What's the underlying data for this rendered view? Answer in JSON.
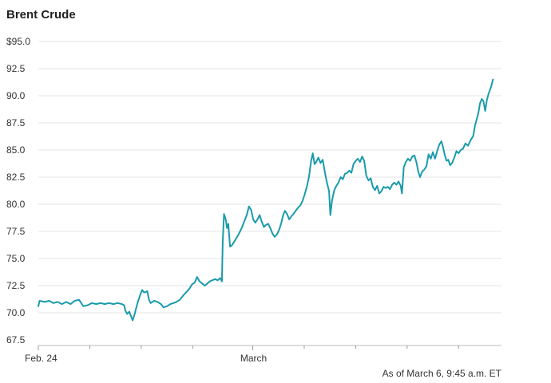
{
  "header": {
    "title": "Brent Crude"
  },
  "footer": {
    "note": "As of March 6, 9:45 a.m. ET"
  },
  "colors": {
    "line": "#1a9bab",
    "grid": "#e6e6e6"
  },
  "chart_data": {
    "type": "line",
    "title": "Brent Crude",
    "xlabel": "",
    "ylabel": "",
    "grid": true,
    "ylim": [
      67.5,
      95.0
    ],
    "yticks": [
      "$95.0",
      "92.5",
      "90.0",
      "87.5",
      "85.0",
      "82.5",
      "80.0",
      "77.5",
      "75.0",
      "72.5",
      "70.0",
      "67.5"
    ],
    "ytick_values": [
      95.0,
      92.5,
      90.0,
      87.5,
      85.0,
      82.5,
      80.0,
      77.5,
      75.0,
      72.5,
      70.0,
      67.5
    ],
    "xlim": [
      0,
      10.8
    ],
    "xtick_labels": [
      {
        "x": 0,
        "label": "Feb. 24"
      },
      {
        "x": 5,
        "label": "March"
      }
    ],
    "xtick_marks": [
      0,
      1.2,
      2.4,
      3.6,
      5,
      6.2,
      7.4,
      8.6,
      9.8
    ],
    "series": [
      {
        "values": [
          [
            0.0,
            70.6
          ],
          [
            0.03,
            71.1
          ],
          [
            0.15,
            71.0
          ],
          [
            0.25,
            71.1
          ],
          [
            0.35,
            70.9
          ],
          [
            0.45,
            71.0
          ],
          [
            0.55,
            70.8
          ],
          [
            0.65,
            71.0
          ],
          [
            0.75,
            70.8
          ],
          [
            0.85,
            71.1
          ],
          [
            0.95,
            71.2
          ],
          [
            1.0,
            70.9
          ],
          [
            1.05,
            70.6
          ],
          [
            1.15,
            70.7
          ],
          [
            1.25,
            70.9
          ],
          [
            1.35,
            70.8
          ],
          [
            1.45,
            70.9
          ],
          [
            1.55,
            70.8
          ],
          [
            1.65,
            70.9
          ],
          [
            1.75,
            70.8
          ],
          [
            1.85,
            70.9
          ],
          [
            1.95,
            70.8
          ],
          [
            2.0,
            70.7
          ],
          [
            2.03,
            70.2
          ],
          [
            2.07,
            69.9
          ],
          [
            2.12,
            70.1
          ],
          [
            2.16,
            69.7
          ],
          [
            2.2,
            69.3
          ],
          [
            2.24,
            69.8
          ],
          [
            2.28,
            70.4
          ],
          [
            2.32,
            71.0
          ],
          [
            2.38,
            71.7
          ],
          [
            2.42,
            72.1
          ],
          [
            2.46,
            71.9
          ],
          [
            2.5,
            71.9
          ],
          [
            2.54,
            72.0
          ],
          [
            2.58,
            71.2
          ],
          [
            2.62,
            70.9
          ],
          [
            2.7,
            71.1
          ],
          [
            2.78,
            71.0
          ],
          [
            2.86,
            70.8
          ],
          [
            2.92,
            70.5
          ],
          [
            3.0,
            70.6
          ],
          [
            3.08,
            70.8
          ],
          [
            3.15,
            70.9
          ],
          [
            3.22,
            71.0
          ],
          [
            3.3,
            71.2
          ],
          [
            3.38,
            71.6
          ],
          [
            3.45,
            71.9
          ],
          [
            3.52,
            72.2
          ],
          [
            3.58,
            72.6
          ],
          [
            3.65,
            72.8
          ],
          [
            3.7,
            73.3
          ],
          [
            3.76,
            72.9
          ],
          [
            3.82,
            72.7
          ],
          [
            3.88,
            72.5
          ],
          [
            3.94,
            72.7
          ],
          [
            4.0,
            72.9
          ],
          [
            4.06,
            73.0
          ],
          [
            4.12,
            73.1
          ],
          [
            4.18,
            73.0
          ],
          [
            4.24,
            73.2
          ],
          [
            4.28,
            72.9
          ],
          [
            4.3,
            76.5
          ],
          [
            4.33,
            79.1
          ],
          [
            4.37,
            78.6
          ],
          [
            4.4,
            77.8
          ],
          [
            4.43,
            78.2
          ],
          [
            4.47,
            76.1
          ],
          [
            4.51,
            76.2
          ],
          [
            4.56,
            76.5
          ],
          [
            4.62,
            76.9
          ],
          [
            4.68,
            77.3
          ],
          [
            4.74,
            77.8
          ],
          [
            4.8,
            78.4
          ],
          [
            4.86,
            79.0
          ],
          [
            4.91,
            79.8
          ],
          [
            4.96,
            79.5
          ],
          [
            5.01,
            78.6
          ],
          [
            5.06,
            78.3
          ],
          [
            5.11,
            78.6
          ],
          [
            5.16,
            79.0
          ],
          [
            5.21,
            78.4
          ],
          [
            5.26,
            77.9
          ],
          [
            5.31,
            78.1
          ],
          [
            5.36,
            78.2
          ],
          [
            5.41,
            77.8
          ],
          [
            5.46,
            77.3
          ],
          [
            5.51,
            77.0
          ],
          [
            5.56,
            77.2
          ],
          [
            5.61,
            77.6
          ],
          [
            5.66,
            78.2
          ],
          [
            5.71,
            79.0
          ],
          [
            5.75,
            79.4
          ],
          [
            5.8,
            79.1
          ],
          [
            5.85,
            78.6
          ],
          [
            5.9,
            78.9
          ],
          [
            5.95,
            79.1
          ],
          [
            6.0,
            79.4
          ],
          [
            6.06,
            79.7
          ],
          [
            6.11,
            79.9
          ],
          [
            6.16,
            80.3
          ],
          [
            6.21,
            80.9
          ],
          [
            6.26,
            81.6
          ],
          [
            6.31,
            82.5
          ],
          [
            6.36,
            84.0
          ],
          [
            6.4,
            84.7
          ],
          [
            6.44,
            83.7
          ],
          [
            6.48,
            83.9
          ],
          [
            6.53,
            84.3
          ],
          [
            6.58,
            83.8
          ],
          [
            6.63,
            84.1
          ],
          [
            6.68,
            83.0
          ],
          [
            6.73,
            82.0
          ],
          [
            6.78,
            81.2
          ],
          [
            6.81,
            79.0
          ],
          [
            6.85,
            80.4
          ],
          [
            6.9,
            81.3
          ],
          [
            6.95,
            81.7
          ],
          [
            7.0,
            82.0
          ],
          [
            7.05,
            82.5
          ],
          [
            7.1,
            82.3
          ],
          [
            7.15,
            82.8
          ],
          [
            7.2,
            82.9
          ],
          [
            7.25,
            83.1
          ],
          [
            7.3,
            82.9
          ],
          [
            7.35,
            83.7
          ],
          [
            7.4,
            84.0
          ],
          [
            7.45,
            84.2
          ],
          [
            7.5,
            83.9
          ],
          [
            7.55,
            84.4
          ],
          [
            7.6,
            84.0
          ],
          [
            7.65,
            82.6
          ],
          [
            7.7,
            82.2
          ],
          [
            7.75,
            82.4
          ],
          [
            7.8,
            81.6
          ],
          [
            7.85,
            81.3
          ],
          [
            7.9,
            81.7
          ],
          [
            7.95,
            81.0
          ],
          [
            8.0,
            81.2
          ],
          [
            8.05,
            81.6
          ],
          [
            8.1,
            81.5
          ],
          [
            8.15,
            81.6
          ],
          [
            8.2,
            81.4
          ],
          [
            8.25,
            81.8
          ],
          [
            8.3,
            82.0
          ],
          [
            8.35,
            81.8
          ],
          [
            8.4,
            82.1
          ],
          [
            8.45,
            81.7
          ],
          [
            8.48,
            81.0
          ],
          [
            8.52,
            83.4
          ],
          [
            8.57,
            83.9
          ],
          [
            8.62,
            84.2
          ],
          [
            8.67,
            84.0
          ],
          [
            8.72,
            84.4
          ],
          [
            8.77,
            84.5
          ],
          [
            8.82,
            83.8
          ],
          [
            8.86,
            83.0
          ],
          [
            8.9,
            82.5
          ],
          [
            8.95,
            83.0
          ],
          [
            9.0,
            83.2
          ],
          [
            9.05,
            83.5
          ],
          [
            9.1,
            84.6
          ],
          [
            9.15,
            84.2
          ],
          [
            9.2,
            84.8
          ],
          [
            9.25,
            84.2
          ],
          [
            9.3,
            84.9
          ],
          [
            9.35,
            85.5
          ],
          [
            9.4,
            85.8
          ],
          [
            9.44,
            85.2
          ],
          [
            9.48,
            84.5
          ],
          [
            9.52,
            84.0
          ],
          [
            9.56,
            84.1
          ],
          [
            9.6,
            83.6
          ],
          [
            9.65,
            83.8
          ],
          [
            9.7,
            84.3
          ],
          [
            9.75,
            84.9
          ],
          [
            9.8,
            84.7
          ],
          [
            9.85,
            85.0
          ],
          [
            9.9,
            85.1
          ],
          [
            9.96,
            85.6
          ],
          [
            10.02,
            85.4
          ],
          [
            10.08,
            85.9
          ],
          [
            10.14,
            86.3
          ],
          [
            10.18,
            87.2
          ],
          [
            10.22,
            87.8
          ],
          [
            10.26,
            88.4
          ],
          [
            10.3,
            89.3
          ],
          [
            10.34,
            89.7
          ],
          [
            10.38,
            89.5
          ],
          [
            10.42,
            88.6
          ],
          [
            10.46,
            89.6
          ],
          [
            10.5,
            90.2
          ],
          [
            10.54,
            90.6
          ],
          [
            10.57,
            91.0
          ],
          [
            10.6,
            91.5
          ]
        ]
      }
    ]
  }
}
